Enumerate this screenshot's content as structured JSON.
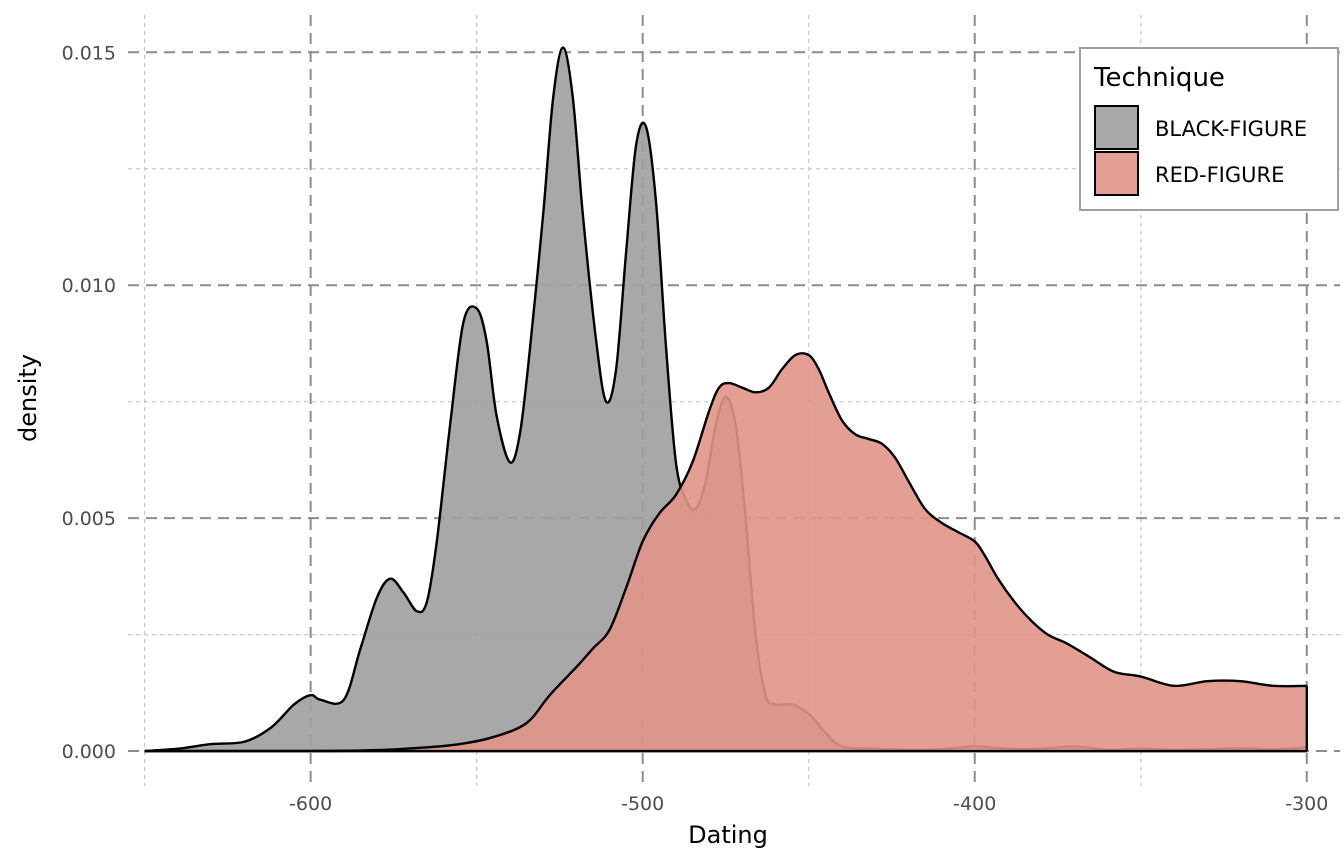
{
  "chart_data": {
    "type": "area",
    "subtype": "density",
    "xlabel": "Dating",
    "ylabel": "density",
    "xlim": [
      -655,
      -290
    ],
    "ylim": [
      -0.00075,
      0.0158
    ],
    "x_ticks": [
      -600,
      -500,
      -400,
      -300
    ],
    "x_tick_labels": [
      "-600",
      "-500",
      "-400",
      "-300"
    ],
    "x_minor_ticks": [
      -650,
      -550,
      -450,
      -350
    ],
    "y_ticks": [
      0.0,
      0.005,
      0.01,
      0.015
    ],
    "y_tick_labels": [
      "0.000",
      "0.005",
      "0.010",
      "0.015"
    ],
    "y_minor_ticks": [
      0.0025,
      0.0075,
      0.0125
    ],
    "grid": true,
    "legend": {
      "title": "Technique",
      "position": "top-right"
    },
    "series": [
      {
        "name": "BLACK-FIGURE",
        "fill": "#9e9e9e",
        "x": [
          -650,
          -640,
          -630,
          -620,
          -612,
          -605,
          -600,
          -597,
          -590,
          -585,
          -580,
          -576,
          -572,
          -568,
          -565,
          -562,
          -558,
          -554,
          -550,
          -547,
          -544,
          -540,
          -537,
          -534,
          -530,
          -527,
          -524,
          -521,
          -518,
          -514,
          -511,
          -508,
          -505,
          -502,
          -499,
          -496,
          -493,
          -490,
          -487,
          -484,
          -481,
          -478,
          -475,
          -472,
          -469,
          -466,
          -463,
          -460,
          -455,
          -450,
          -445,
          -440,
          -430,
          -420,
          -410,
          -400,
          -390,
          -380,
          -370,
          -360,
          -350,
          -340,
          -330,
          -320,
          -310,
          -300
        ],
        "y": [
          0.0,
          5e-05,
          0.00015,
          0.0002,
          0.0005,
          0.001,
          0.0012,
          0.0011,
          0.0011,
          0.0022,
          0.0033,
          0.0037,
          0.0034,
          0.003,
          0.0032,
          0.0045,
          0.007,
          0.0092,
          0.0095,
          0.0088,
          0.0072,
          0.0062,
          0.0068,
          0.0086,
          0.0115,
          0.014,
          0.0151,
          0.014,
          0.0115,
          0.0088,
          0.0075,
          0.0082,
          0.0107,
          0.013,
          0.0134,
          0.0118,
          0.0087,
          0.0062,
          0.0054,
          0.0052,
          0.0058,
          0.007,
          0.0076,
          0.007,
          0.005,
          0.0025,
          0.0012,
          0.001,
          0.001,
          0.0008,
          0.0004,
          0.0001,
          5e-05,
          3e-05,
          4e-05,
          0.0001,
          5e-05,
          5e-05,
          0.0001,
          3e-05,
          5e-05,
          3e-05,
          4e-05,
          6e-05,
          4e-05,
          8e-05
        ]
      },
      {
        "name": "RED-FIGURE",
        "fill": "#e09587",
        "x": [
          -650,
          -600,
          -580,
          -565,
          -555,
          -545,
          -535,
          -528,
          -520,
          -515,
          -510,
          -505,
          -500,
          -495,
          -490,
          -485,
          -480,
          -477,
          -474,
          -470,
          -466,
          -462,
          -458,
          -454,
          -450,
          -447,
          -444,
          -440,
          -436,
          -432,
          -428,
          -424,
          -420,
          -415,
          -410,
          -405,
          -400,
          -397,
          -393,
          -388,
          -383,
          -378,
          -372,
          -365,
          -358,
          -350,
          -340,
          -330,
          -320,
          -310,
          -300
        ],
        "y": [
          0.0,
          0.0,
          2e-05,
          8e-05,
          0.00015,
          0.0003,
          0.0006,
          0.0012,
          0.0018,
          0.0022,
          0.0026,
          0.0035,
          0.0045,
          0.0051,
          0.0055,
          0.0062,
          0.0073,
          0.0078,
          0.0079,
          0.0078,
          0.0077,
          0.0078,
          0.0082,
          0.0085,
          0.0085,
          0.0082,
          0.0077,
          0.0071,
          0.0068,
          0.0067,
          0.0066,
          0.0063,
          0.0058,
          0.0052,
          0.0049,
          0.0047,
          0.0045,
          0.0042,
          0.0037,
          0.0032,
          0.0028,
          0.0025,
          0.0023,
          0.002,
          0.0017,
          0.0016,
          0.0014,
          0.0015,
          0.0015,
          0.0014,
          0.0014
        ]
      }
    ]
  }
}
